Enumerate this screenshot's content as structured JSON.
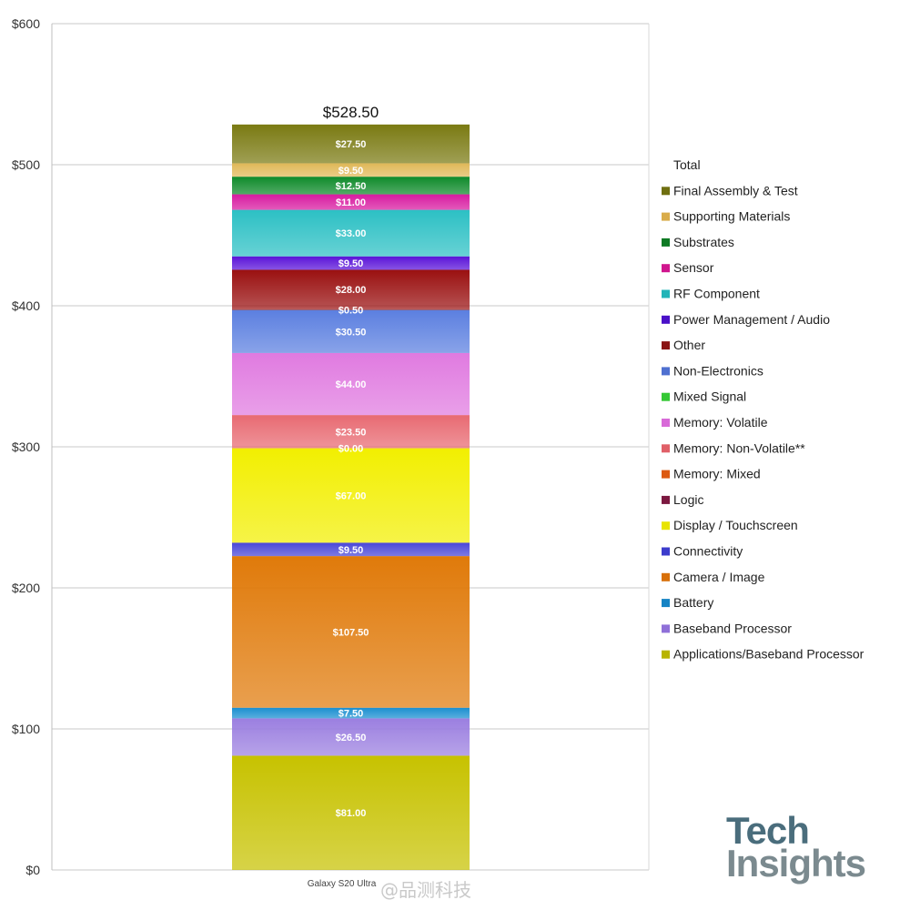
{
  "chart_data": {
    "type": "bar",
    "stacked": true,
    "categories": [
      "Galaxy S20 Ultra"
    ],
    "ylim": [
      0,
      600
    ],
    "yticks": [
      0,
      100,
      200,
      300,
      400,
      500,
      600
    ],
    "ytick_labels": [
      "$0",
      "$100",
      "$200",
      "$300",
      "$400",
      "$500",
      "$600"
    ],
    "total": 528.5,
    "total_label": "$528.50",
    "series": [
      {
        "name": "Applications/Baseband Processor",
        "value": 81.0,
        "label": "$81.00",
        "color": "#c7c200"
      },
      {
        "name": "Baseband Processor",
        "value": 26.5,
        "label": "$26.50",
        "color": "#9b7fe0"
      },
      {
        "name": "Battery",
        "value": 7.5,
        "label": "$7.50",
        "color": "#1a8fd0"
      },
      {
        "name": "Camera / Image",
        "value": 107.5,
        "label": "$107.50",
        "color": "#e07a0a"
      },
      {
        "name": "Connectivity",
        "value": 9.5,
        "label": "$9.50",
        "color": "#4a47d8"
      },
      {
        "name": "Display / Touchscreen",
        "value": 67.0,
        "label": "$67.00",
        "color": "#f2ef00"
      },
      {
        "name": "Logic",
        "value": 0.0,
        "label": "$0.00",
        "color": "#8b1a4a"
      },
      {
        "name": "Memory: Mixed",
        "value": 0.0,
        "label": "",
        "color": "#e0661a"
      },
      {
        "name": "Memory: Non-Volatile**",
        "value": 23.5,
        "label": "$23.50",
        "color": "#e86a72"
      },
      {
        "name": "Memory: Volatile",
        "value": 44.0,
        "label": "$44.00",
        "color": "#e07ae0"
      },
      {
        "name": "Mixed Signal",
        "value": 0.0,
        "label": "",
        "color": "#3ccf3c"
      },
      {
        "name": "Non-Electronics",
        "value": 30.5,
        "label": "$30.50",
        "color": "#5b7fe0"
      },
      {
        "name": "Other",
        "value": 0.5,
        "label": "$0.50",
        "color": "#8a2020"
      },
      {
        "name": "Other",
        "value": 28.0,
        "label": "$28.00",
        "color": "#9a1010"
      },
      {
        "name": "Power Management / Audio",
        "value": 9.5,
        "label": "$9.50",
        "color": "#5a12d8"
      },
      {
        "name": "RF Component",
        "value": 33.0,
        "label": "$33.00",
        "color": "#2cc0c4"
      },
      {
        "name": "Sensor",
        "value": 11.0,
        "label": "$11.00",
        "color": "#d81aa0"
      },
      {
        "name": "Substrates",
        "value": 12.5,
        "label": "$12.50",
        "color": "#0e8a2a"
      },
      {
        "name": "Supporting Materials",
        "value": 9.5,
        "label": "$9.50",
        "color": "#e0b858"
      },
      {
        "name": "Final Assembly & Test",
        "value": 27.5,
        "label": "$27.50",
        "color": "#7a7a12"
      }
    ],
    "legend_title": "Total",
    "legend": [
      {
        "name": "Final Assembly & Test",
        "color": "#6f6f10"
      },
      {
        "name": "Supporting Materials",
        "color": "#d9ac4a"
      },
      {
        "name": "Substrates",
        "color": "#0e7a24"
      },
      {
        "name": "Sensor",
        "color": "#d0168e"
      },
      {
        "name": "RF Component",
        "color": "#22b4b8"
      },
      {
        "name": "Power Management / Audio",
        "color": "#4a10c8"
      },
      {
        "name": "Other",
        "color": "#8a1414"
      },
      {
        "name": "Non-Electronics",
        "color": "#4f70d0"
      },
      {
        "name": "Mixed Signal",
        "color": "#34c834"
      },
      {
        "name": "Memory: Volatile",
        "color": "#d86ad8"
      },
      {
        "name": "Memory: Non-Volatile**",
        "color": "#e06068"
      },
      {
        "name": "Memory: Mixed",
        "color": "#dc5a12"
      },
      {
        "name": "Logic",
        "color": "#7c1840"
      },
      {
        "name": "Display / Touchscreen",
        "color": "#e8e400"
      },
      {
        "name": "Connectivity",
        "color": "#3c3ccc"
      },
      {
        "name": "Camera / Image",
        "color": "#d8700a"
      },
      {
        "name": "Battery",
        "color": "#1683c4"
      },
      {
        "name": "Baseband Processor",
        "color": "#8f70d8"
      },
      {
        "name": "Applications/Baseband Processor",
        "color": "#b8b400"
      }
    ]
  },
  "logo": {
    "line1": "Tech",
    "line2": "Insights"
  },
  "watermark": "@品测科技"
}
